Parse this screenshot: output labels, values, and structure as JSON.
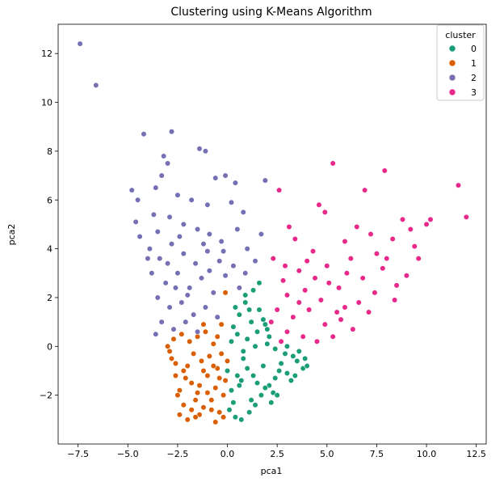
{
  "chart_data": {
    "type": "scatter",
    "title": "Clustering using K-Means Algorithm",
    "xlabel": "pca1",
    "ylabel": "pca2",
    "xlim": [
      -8.5,
      13.0
    ],
    "ylim": [
      -4.0,
      13.2
    ],
    "xticks": [
      -7.5,
      -5.0,
      -2.5,
      0.0,
      2.5,
      5.0,
      7.5,
      10.0,
      12.5
    ],
    "xtick_labels": [
      "−7.5",
      "−5.0",
      "−2.5",
      "0.0",
      "2.5",
      "5.0",
      "7.5",
      "10.0",
      "12.5"
    ],
    "yticks": [
      -2,
      0,
      2,
      4,
      6,
      8,
      10,
      12
    ],
    "ytick_labels": [
      "−2",
      "0",
      "2",
      "4",
      "6",
      "8",
      "10",
      "12"
    ],
    "grid": false,
    "legend": {
      "title": "cluster",
      "placement": "top-right"
    },
    "series": [
      {
        "name": "0",
        "color": "#1b9e77",
        "points": [
          [
            0.2,
            -1.8
          ],
          [
            0.5,
            -1.2
          ],
          [
            0.8,
            -0.5
          ],
          [
            1.0,
            0.3
          ],
          [
            1.2,
            -2.2
          ],
          [
            1.5,
            -1.5
          ],
          [
            1.8,
            -0.8
          ],
          [
            2.0,
            0.1
          ],
          [
            2.3,
            -1.9
          ],
          [
            2.6,
            -1.0
          ],
          [
            2.9,
            -0.3
          ],
          [
            3.2,
            -1.4
          ],
          [
            3.5,
            -0.6
          ],
          [
            3.8,
            -0.9
          ],
          [
            0.3,
            0.8
          ],
          [
            0.6,
            1.3
          ],
          [
            0.9,
            1.8
          ],
          [
            1.3,
            2.3
          ],
          [
            1.6,
            1.5
          ],
          [
            1.9,
            0.9
          ],
          [
            0.1,
            -2.6
          ],
          [
            0.4,
            -2.9
          ],
          [
            0.7,
            -3.0
          ],
          [
            1.1,
            -2.7
          ],
          [
            1.4,
            -2.4
          ],
          [
            1.7,
            -2.0
          ],
          [
            2.1,
            -1.6
          ],
          [
            2.4,
            -1.3
          ],
          [
            2.7,
            -0.7
          ],
          [
            3.0,
            -1.1
          ],
          [
            3.3,
            -0.4
          ],
          [
            3.6,
            -0.2
          ],
          [
            3.9,
            -0.5
          ],
          [
            4.0,
            -0.8
          ],
          [
            0.0,
            -1.0
          ],
          [
            0.2,
            0.2
          ],
          [
            0.5,
            0.5
          ],
          [
            0.8,
            -0.2
          ],
          [
            1.0,
            -0.9
          ],
          [
            1.3,
            -1.2
          ],
          [
            1.5,
            0.6
          ],
          [
            1.8,
            1.1
          ],
          [
            2.1,
            0.4
          ],
          [
            2.4,
            -0.1
          ],
          [
            2.7,
            0.2
          ],
          [
            3.0,
            0.0
          ],
          [
            1.2,
            1.0
          ],
          [
            0.9,
            2.1
          ],
          [
            1.6,
            2.6
          ],
          [
            2.2,
            -2.3
          ],
          [
            0.3,
            -2.3
          ],
          [
            0.6,
            -1.6
          ],
          [
            1.9,
            -1.7
          ],
          [
            2.5,
            -2.0
          ],
          [
            3.4,
            -1.2
          ],
          [
            1.4,
            0.0
          ],
          [
            0.7,
            -1.4
          ],
          [
            1.1,
            1.5
          ],
          [
            0.4,
            1.6
          ],
          [
            2.0,
            0.7
          ]
        ]
      },
      {
        "name": "1",
        "color": "#d95f02",
        "points": [
          [
            -3.0,
            0.0
          ],
          [
            -2.8,
            -0.5
          ],
          [
            -2.6,
            -1.2
          ],
          [
            -2.4,
            -1.8
          ],
          [
            -2.2,
            -2.4
          ],
          [
            -2.0,
            -0.8
          ],
          [
            -1.8,
            -1.5
          ],
          [
            -1.6,
            -2.2
          ],
          [
            -1.4,
            -2.8
          ],
          [
            -1.2,
            -1.0
          ],
          [
            -1.0,
            -1.9
          ],
          [
            -0.8,
            -2.6
          ],
          [
            -0.6,
            -3.1
          ],
          [
            -0.4,
            -1.3
          ],
          [
            -0.2,
            -2.0
          ],
          [
            0.0,
            -0.6
          ],
          [
            -2.7,
            0.3
          ],
          [
            -2.3,
            0.5
          ],
          [
            -1.9,
            0.2
          ],
          [
            -1.5,
            0.4
          ],
          [
            -1.1,
            0.6
          ],
          [
            -0.7,
            0.1
          ],
          [
            -0.3,
            -0.3
          ],
          [
            -2.5,
            -2.0
          ],
          [
            -2.1,
            -1.3
          ],
          [
            -1.7,
            -0.3
          ],
          [
            -1.3,
            -0.6
          ],
          [
            -0.9,
            -0.4
          ],
          [
            -0.5,
            -0.9
          ],
          [
            -0.1,
            -1.4
          ],
          [
            -2.9,
            -0.2
          ],
          [
            -2.4,
            -2.8
          ],
          [
            -2.0,
            -3.0
          ],
          [
            -1.6,
            -2.9
          ],
          [
            -1.2,
            -2.5
          ],
          [
            -0.8,
            -2.2
          ],
          [
            -0.4,
            -2.7
          ],
          [
            -0.2,
            -2.9
          ],
          [
            -1.4,
            -1.6
          ],
          [
            -1.0,
            -1.2
          ],
          [
            -0.6,
            -1.7
          ],
          [
            -1.8,
            -2.6
          ],
          [
            -2.2,
            -1.0
          ],
          [
            -2.6,
            -0.7
          ],
          [
            -0.3,
            0.9
          ],
          [
            -0.1,
            2.2
          ],
          [
            -1.2,
            0.9
          ],
          [
            -0.5,
            0.4
          ],
          [
            -1.5,
            -1.9
          ],
          [
            -0.7,
            -0.8
          ]
        ]
      },
      {
        "name": "2",
        "color": "#7570b3",
        "points": [
          [
            -7.4,
            12.4
          ],
          [
            -6.6,
            10.7
          ],
          [
            -4.2,
            8.7
          ],
          [
            -2.8,
            8.8
          ],
          [
            -1.4,
            8.1
          ],
          [
            -1.1,
            8.0
          ],
          [
            -3.2,
            7.8
          ],
          [
            -3.0,
            7.5
          ],
          [
            -3.3,
            7.0
          ],
          [
            -0.1,
            7.0
          ],
          [
            -0.6,
            6.9
          ],
          [
            1.9,
            6.8
          ],
          [
            0.4,
            6.7
          ],
          [
            -4.8,
            6.4
          ],
          [
            -3.6,
            6.5
          ],
          [
            -4.5,
            6.0
          ],
          [
            -2.5,
            6.2
          ],
          [
            -1.8,
            6.0
          ],
          [
            -1.0,
            5.8
          ],
          [
            0.2,
            5.9
          ],
          [
            0.8,
            5.5
          ],
          [
            -4.6,
            5.1
          ],
          [
            -3.7,
            5.4
          ],
          [
            -2.9,
            5.3
          ],
          [
            -2.2,
            5.0
          ],
          [
            -1.5,
            4.8
          ],
          [
            -0.9,
            4.6
          ],
          [
            -0.3,
            4.3
          ],
          [
            0.5,
            4.8
          ],
          [
            1.0,
            4.0
          ],
          [
            -4.4,
            4.5
          ],
          [
            -3.9,
            4.0
          ],
          [
            -3.4,
            3.6
          ],
          [
            -2.8,
            4.2
          ],
          [
            -2.2,
            3.8
          ],
          [
            -1.6,
            3.4
          ],
          [
            -1.0,
            3.9
          ],
          [
            -0.4,
            3.5
          ],
          [
            0.3,
            3.3
          ],
          [
            1.4,
            3.5
          ],
          [
            -3.8,
            3.0
          ],
          [
            -3.1,
            2.6
          ],
          [
            -2.5,
            3.0
          ],
          [
            -1.9,
            2.4
          ],
          [
            -1.3,
            2.8
          ],
          [
            -0.7,
            2.2
          ],
          [
            -0.1,
            2.9
          ],
          [
            0.6,
            2.4
          ],
          [
            -3.5,
            2.0
          ],
          [
            -2.9,
            1.6
          ],
          [
            -2.3,
            1.8
          ],
          [
            -1.7,
            1.3
          ],
          [
            -1.1,
            1.6
          ],
          [
            -0.5,
            1.2
          ],
          [
            -3.3,
            1.0
          ],
          [
            -2.7,
            0.7
          ],
          [
            -2.1,
            1.0
          ],
          [
            -1.5,
            0.6
          ],
          [
            -3.6,
            0.5
          ],
          [
            -0.9,
            3.1
          ],
          [
            -2.0,
            2.1
          ],
          [
            -2.6,
            2.4
          ],
          [
            -3.0,
            3.4
          ],
          [
            -1.2,
            4.2
          ],
          [
            -0.2,
            3.9
          ],
          [
            0.9,
            3.0
          ],
          [
            -4.0,
            3.6
          ],
          [
            -3.5,
            4.7
          ],
          [
            -2.4,
            4.5
          ],
          [
            1.7,
            4.6
          ]
        ]
      },
      {
        "name": "3",
        "color": "#e7298a",
        "points": [
          [
            11.6,
            6.6
          ],
          [
            12.0,
            5.3
          ],
          [
            5.3,
            7.5
          ],
          [
            7.9,
            7.2
          ],
          [
            6.9,
            6.4
          ],
          [
            2.6,
            6.4
          ],
          [
            4.6,
            5.8
          ],
          [
            8.8,
            5.2
          ],
          [
            10.2,
            5.2
          ],
          [
            10.0,
            5.0
          ],
          [
            7.2,
            4.6
          ],
          [
            9.2,
            4.8
          ],
          [
            6.5,
            4.9
          ],
          [
            4.9,
            5.5
          ],
          [
            3.1,
            4.9
          ],
          [
            3.4,
            4.4
          ],
          [
            5.9,
            4.3
          ],
          [
            8.3,
            4.4
          ],
          [
            9.6,
            3.6
          ],
          [
            7.5,
            3.8
          ],
          [
            4.3,
            3.9
          ],
          [
            2.3,
            3.6
          ],
          [
            5.0,
            3.3
          ],
          [
            6.2,
            3.6
          ],
          [
            7.8,
            3.2
          ],
          [
            9.0,
            2.9
          ],
          [
            8.5,
            2.5
          ],
          [
            3.6,
            3.1
          ],
          [
            2.8,
            2.7
          ],
          [
            4.4,
            2.8
          ],
          [
            5.6,
            2.4
          ],
          [
            6.8,
            2.8
          ],
          [
            7.4,
            2.2
          ],
          [
            8.4,
            1.9
          ],
          [
            3.0,
            2.1
          ],
          [
            3.9,
            2.3
          ],
          [
            4.7,
            1.9
          ],
          [
            5.9,
            1.6
          ],
          [
            6.6,
            1.8
          ],
          [
            7.1,
            1.4
          ],
          [
            2.5,
            1.5
          ],
          [
            3.3,
            1.2
          ],
          [
            4.1,
            1.5
          ],
          [
            4.9,
            0.9
          ],
          [
            5.7,
            1.1
          ],
          [
            6.3,
            0.7
          ],
          [
            2.2,
            1.0
          ],
          [
            3.0,
            0.6
          ],
          [
            3.8,
            0.4
          ],
          [
            4.5,
            0.2
          ],
          [
            5.3,
            0.4
          ],
          [
            2.7,
            0.2
          ],
          [
            3.6,
            1.8
          ],
          [
            5.1,
            2.6
          ],
          [
            6.0,
            3.0
          ],
          [
            4.0,
            3.5
          ],
          [
            2.9,
            3.3
          ],
          [
            8.0,
            3.6
          ],
          [
            9.4,
            4.1
          ],
          [
            5.5,
            1.4
          ]
        ]
      }
    ]
  }
}
